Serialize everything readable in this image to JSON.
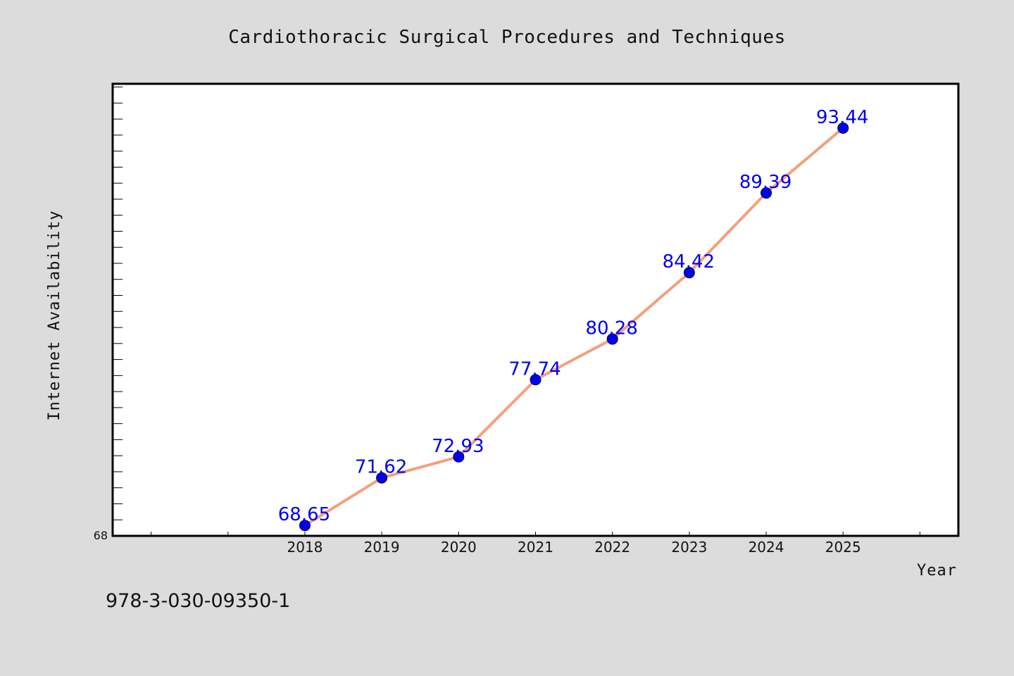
{
  "chart_data": {
    "type": "line",
    "title": "Cardiothoracic Surgical Procedures and Techniques",
    "xlabel": "Year",
    "ylabel": "Internet Availability",
    "x": [
      "2018",
      "2019",
      "2020",
      "2021",
      "2022",
      "2023",
      "2024",
      "2025"
    ],
    "series": [
      {
        "values": [
          68.65,
          71.62,
          72.93,
          77.74,
          80.28,
          84.42,
          89.39,
          93.44
        ]
      }
    ],
    "data_labels": [
      "68.65",
      "71.62",
      "72.93",
      "77.74",
      "80.28",
      "84.42",
      "89.39",
      "93.44"
    ],
    "y_min_label": "68",
    "xlim": [
      2015.5,
      2026.5
    ],
    "ylim": [
      68,
      96.2
    ],
    "y_minor_tick_step": 1,
    "grid": false,
    "legend": "none",
    "colors": {
      "background": "#dcdcdc",
      "plot_area": "#ffffff",
      "line": "#f4a07c",
      "marker": "#0000ee",
      "data_label": "#0000ee"
    }
  },
  "footer": {
    "isbn": "978-3-030-09350-1"
  }
}
